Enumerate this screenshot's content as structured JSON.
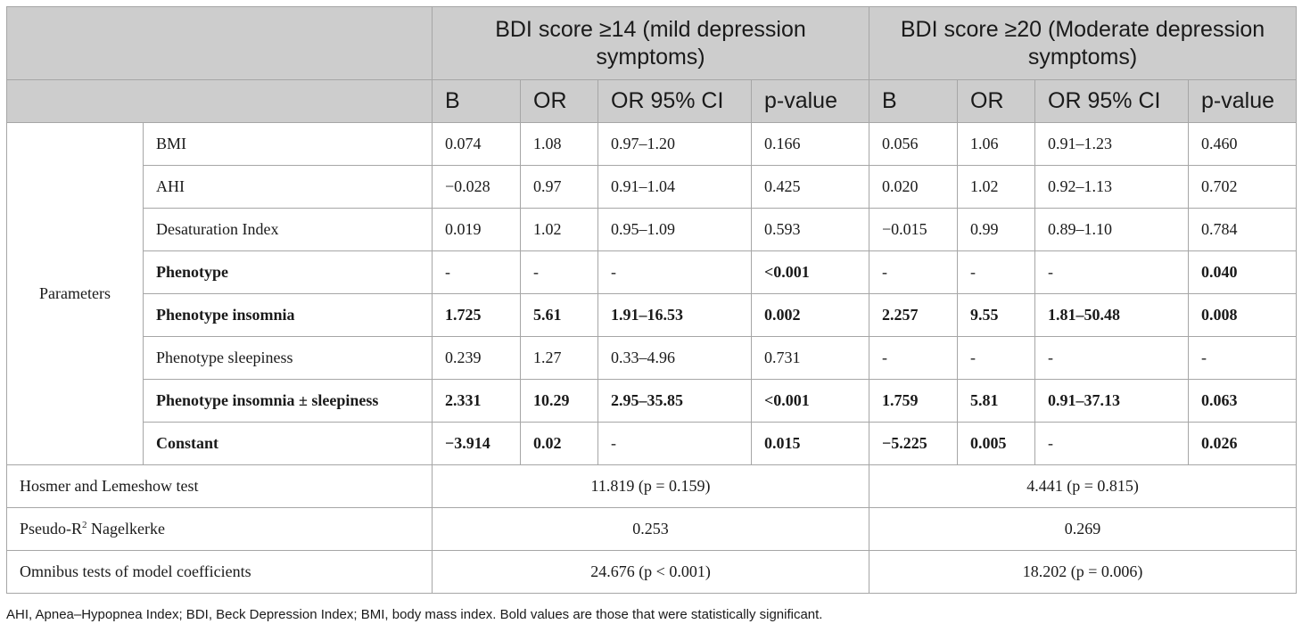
{
  "headers": {
    "group1": "BDI score  ≥14 (mild depression symptoms)",
    "group2": "BDI score  ≥20 (Moderate depression symptoms)",
    "sub": [
      "B",
      "OR",
      "OR 95% CI",
      "p-value",
      "B",
      "OR",
      "OR 95% CI",
      "p-value"
    ]
  },
  "params_label": "Parameters",
  "rows": [
    {
      "label": "BMI",
      "bold": false,
      "cells": [
        "0.074",
        "1.08",
        "0.97–1.20",
        "0.166",
        "0.056",
        "1.06",
        "0.91–1.23",
        "0.460"
      ],
      "bold_cells": [
        false,
        false,
        false,
        false,
        false,
        false,
        false,
        false
      ]
    },
    {
      "label": "AHI",
      "bold": false,
      "cells": [
        "−0.028",
        "0.97",
        "0.91–1.04",
        "0.425",
        "0.020",
        "1.02",
        "0.92–1.13",
        "0.702"
      ],
      "bold_cells": [
        false,
        false,
        false,
        false,
        false,
        false,
        false,
        false
      ]
    },
    {
      "label": "Desaturation Index",
      "bold": false,
      "cells": [
        "0.019",
        "1.02",
        "0.95–1.09",
        "0.593",
        "−0.015",
        "0.99",
        "0.89–1.10",
        "0.784"
      ],
      "bold_cells": [
        false,
        false,
        false,
        false,
        false,
        false,
        false,
        false
      ]
    },
    {
      "label": "Phenotype",
      "bold": true,
      "cells": [
        "-",
        "-",
        "-",
        "<0.001",
        "-",
        "-",
        "-",
        "0.040"
      ],
      "bold_cells": [
        false,
        false,
        false,
        true,
        false,
        false,
        false,
        true
      ]
    },
    {
      "label": "Phenotype insomnia",
      "bold": true,
      "cells": [
        "1.725",
        "5.61",
        "1.91–16.53",
        "0.002",
        "2.257",
        "9.55",
        "1.81–50.48",
        "0.008"
      ],
      "bold_cells": [
        true,
        true,
        true,
        true,
        true,
        true,
        true,
        true
      ]
    },
    {
      "label": "Phenotype sleepiness",
      "bold": false,
      "cells": [
        "0.239",
        "1.27",
        "0.33–4.96",
        "0.731",
        "-",
        "-",
        "-",
        "-"
      ],
      "bold_cells": [
        false,
        false,
        false,
        false,
        false,
        false,
        false,
        false
      ]
    },
    {
      "label": "Phenotype insomnia ± sleepiness",
      "bold": true,
      "cells": [
        "2.331",
        "10.29",
        "2.95–35.85",
        "<0.001",
        "1.759",
        "5.81",
        "0.91–37.13",
        "0.063"
      ],
      "bold_cells": [
        true,
        true,
        true,
        true,
        true,
        true,
        true,
        true
      ]
    },
    {
      "label": "Constant",
      "bold": true,
      "cells": [
        "−3.914",
        "0.02",
        "-",
        "0.015",
        "−5.225",
        "0.005",
        "-",
        "0.026"
      ],
      "bold_cells": [
        true,
        true,
        false,
        true,
        true,
        true,
        false,
        true
      ]
    }
  ],
  "tests": [
    {
      "label": "Hosmer and Lemeshow test",
      "g1": "11.819 (p = 0.159)",
      "g2": "4.441 (p = 0.815)"
    },
    {
      "label_pre": "Pseudo-R",
      "label_sup": "2",
      "label_post": " Nagelkerke",
      "g1": "0.253",
      "g2": "0.269"
    },
    {
      "label": "Omnibus tests of model coefficients",
      "g1": "24.676 (p < 0.001)",
      "g2": "18.202 (p = 0.006)"
    }
  ],
  "footnote": "AHI, Apnea–Hypopnea Index; BDI, Beck Depression Index; BMI, body mass index. Bold values are those that were statistically significant."
}
